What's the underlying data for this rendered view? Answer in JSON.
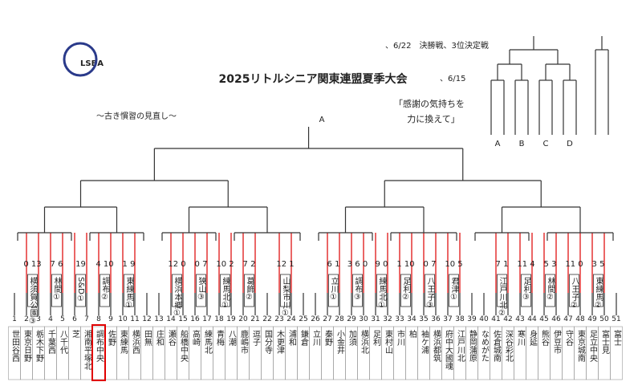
{
  "header": {
    "title": "2025リトルシニア関東連盟夏季大会",
    "logo": "LSBA",
    "final_date": "、6/22　決勝戦、3位決定戦",
    "semi_date": "、6/15",
    "motto": "〜古き慣習の見直し〜",
    "slogan_line1": "「感謝の気持ちを",
    "slogan_line2": "力に換えて」",
    "top_node": "A"
  },
  "finals": {
    "labels": [
      "A",
      "B",
      "C",
      "D"
    ]
  },
  "slots": [
    "1",
    "2",
    "3",
    "4",
    "5",
    "6",
    "7",
    "8",
    "9",
    "10",
    "11",
    "12",
    "13",
    "14",
    "15",
    "16",
    "17",
    "18",
    "19",
    "20",
    "21",
    "22",
    "23",
    "24",
    "25",
    "26",
    "27",
    "28",
    "29",
    "30",
    "31",
    "32",
    "33",
    "34",
    "35",
    "36",
    "37",
    "38",
    "39",
    "40",
    "41",
    "42",
    "43",
    "44",
    "45",
    "46",
    "47",
    "48",
    "49",
    "50",
    "51"
  ],
  "teams": [
    "世田谷西",
    "東京日野",
    "栃木下野",
    "千葉西",
    "八千代",
    "芝",
    "湘南平塚北",
    "調布中央",
    "佐野",
    "東練馬",
    "横浜西",
    "田無",
    "庄和",
    "瀬谷",
    "船橋中央",
    "高崎",
    "練馬北",
    "青梅",
    "八潮",
    "鹿嶋市",
    "逗子",
    "国分寺",
    "木更津",
    "浦和",
    "鎌倉",
    "立川",
    "秦野",
    "小金井",
    "加須",
    "横浜北",
    "足利",
    "東村山",
    "市川",
    "柏",
    "袖ケ浦",
    "横浜都筑",
    "府中大國魂",
    "江戸川北",
    "静岡蒲原",
    "なめがた",
    "佐倉城南",
    "深谷彩北",
    "寒川",
    "身延",
    "熊谷",
    "伊豆市",
    "守谷",
    "東京城南",
    "足立中央",
    "富士見",
    "富士"
  ],
  "first_round": [
    {
      "label": "横須賀公園③",
      "score": "0 13"
    },
    {
      "label": "林間①",
      "score": "7 6"
    },
    {
      "label": "S&D①",
      "score": "19"
    },
    {
      "label": "調布②",
      "score": "4 10"
    },
    {
      "label": "東練馬①",
      "score": "1 9"
    },
    {
      "label": "横浜本郷①",
      "score": "12 0"
    },
    {
      "label": "狭山③",
      "score": "0 7"
    },
    {
      "label": "練馬北①",
      "score": "10 2"
    },
    {
      "label": "葛飾②",
      "score": "7 2"
    },
    {
      "label": "山梨市川①",
      "score": "12 1"
    },
    {
      "label": "立川①",
      "score": "6 1"
    },
    {
      "label": "調布③",
      "score": "3 6 0"
    },
    {
      "label": "練馬北①",
      "score": "9 0"
    },
    {
      "label": "足利②",
      "score": "1 10"
    },
    {
      "label": "八王子③",
      "score": "0 7"
    },
    {
      "label": "君津①",
      "score": "10 5"
    },
    {
      "label": "江戸川北②",
      "score": "7 1"
    },
    {
      "label": "足利③",
      "score": "11 4"
    },
    {
      "label": "林間②",
      "score": "5 3"
    },
    {
      "label": "八王子②",
      "score": "11 0"
    },
    {
      "label": "東練馬②",
      "score": "3 5"
    }
  ]
}
